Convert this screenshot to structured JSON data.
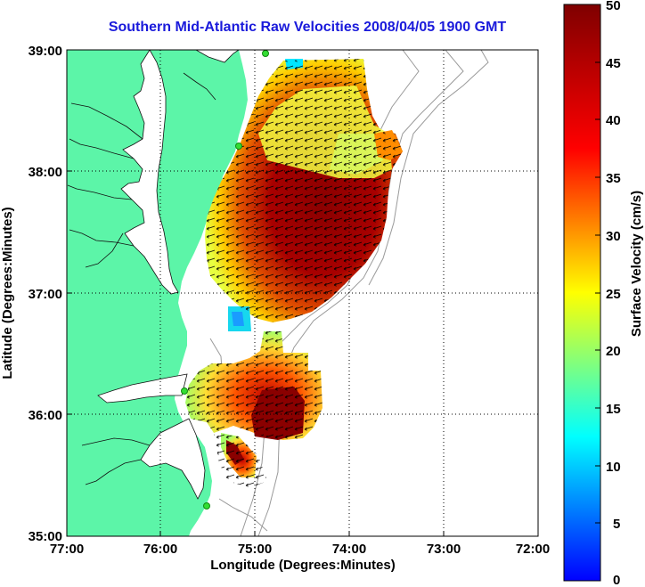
{
  "title": "Southern Mid-Atlantic Raw Velocities 2008/04/05 1900 GMT",
  "x_axis": {
    "label": "Longitude (Degrees:Minutes)",
    "ticks": [
      "77:00",
      "76:00",
      "75:00",
      "74:00",
      "73:00",
      "72:00"
    ]
  },
  "y_axis": {
    "label": "Latitude (Degrees:Minutes)",
    "ticks": [
      "39:00",
      "38:00",
      "37:00",
      "36:00",
      "35:00"
    ]
  },
  "colorbar": {
    "label": "Surface Velocity (cm/s)",
    "ticks": [
      "50",
      "45",
      "40",
      "35",
      "30",
      "25",
      "20",
      "15",
      "10",
      "5",
      "0"
    ],
    "min": 0,
    "max": 50
  },
  "colors": {
    "land": "#5cf5a8",
    "background": "#ffffff",
    "title": "#1a1adb",
    "site_marker": "#33dd33",
    "bathymetry": "#9a9a9a"
  }
}
